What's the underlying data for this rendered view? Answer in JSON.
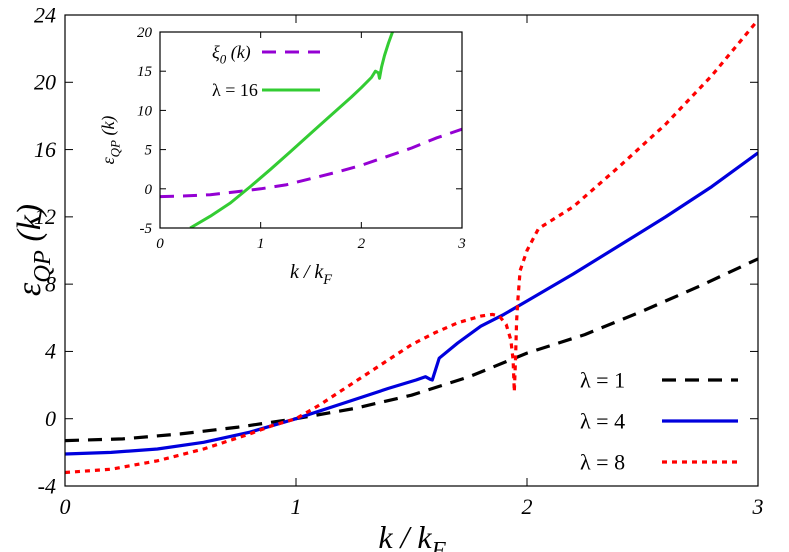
{
  "chart_data": [
    {
      "type": "line",
      "xlabel": {
        "main": "k / k",
        "sub": "F"
      },
      "ylabel": {
        "main": "ε",
        "sub": "QP",
        "tail": " (k)"
      },
      "xlim": [
        0,
        3
      ],
      "ylim": [
        -4,
        24
      ],
      "xticks": [
        "0",
        "1",
        "2",
        "3"
      ],
      "yticks": [
        "-4",
        "0",
        "4",
        "8",
        "12",
        "16",
        "20",
        "24"
      ],
      "legend_position": "bottom-right",
      "grid": false,
      "series": [
        {
          "name": "λ = 1",
          "color": "#000000",
          "dash": "long-dash",
          "x": [
            0,
            0.25,
            0.5,
            0.75,
            1.0,
            1.25,
            1.5,
            1.75,
            2.0,
            2.25,
            2.5,
            2.75,
            3.0
          ],
          "y": [
            -1.3,
            -1.2,
            -0.9,
            -0.5,
            0.0,
            0.6,
            1.4,
            2.5,
            3.9,
            5.0,
            6.4,
            7.9,
            9.5
          ]
        },
        {
          "name": "λ = 4",
          "color": "#0000dd",
          "dash": "solid",
          "x": [
            0,
            0.2,
            0.4,
            0.6,
            0.8,
            1.0,
            1.2,
            1.4,
            1.52,
            1.56,
            1.58,
            1.59,
            1.62,
            1.7,
            1.8,
            1.9,
            2.0,
            2.2,
            2.4,
            2.6,
            2.8,
            3.0
          ],
          "y": [
            -2.1,
            -2.0,
            -1.8,
            -1.4,
            -0.8,
            0.0,
            0.9,
            1.8,
            2.3,
            2.5,
            2.35,
            2.3,
            3.6,
            4.5,
            5.5,
            6.2,
            7.0,
            8.6,
            10.3,
            12.0,
            13.8,
            15.8
          ]
        },
        {
          "name": "λ = 8",
          "color": "#ff0000",
          "dash": "short-dash",
          "x": [
            0,
            0.2,
            0.4,
            0.6,
            0.8,
            0.9,
            1.0,
            1.1,
            1.2,
            1.3,
            1.4,
            1.5,
            1.6,
            1.7,
            1.8,
            1.85,
            1.88,
            1.91,
            1.93,
            1.94,
            1.945,
            1.95,
            1.955,
            1.96,
            1.97,
            2.0,
            2.05,
            2.2,
            2.4,
            2.6,
            2.8,
            3.0
          ],
          "y": [
            -3.2,
            -3.0,
            -2.5,
            -1.8,
            -0.9,
            -0.4,
            0.0,
            0.8,
            1.7,
            2.6,
            3.5,
            4.4,
            5.1,
            5.7,
            6.1,
            6.2,
            6.1,
            5.6,
            4.7,
            3.5,
            1.6,
            3.5,
            5.8,
            7.0,
            8.8,
            10.0,
            11.3,
            12.6,
            15.0,
            17.5,
            20.4,
            23.7
          ]
        }
      ]
    },
    {
      "type": "line",
      "inset": true,
      "xlabel": {
        "main": "k / k",
        "sub": "F"
      },
      "ylabel": {
        "main": "ε",
        "sub": "QP",
        "tail": " (k)"
      },
      "xlim": [
        0,
        3
      ],
      "ylim": [
        -5,
        20
      ],
      "xticks": [
        "0",
        "1",
        "2",
        "3"
      ],
      "yticks": [
        "-5",
        "0",
        "5",
        "10",
        "15",
        "20"
      ],
      "legend_position": "top-left",
      "grid": false,
      "series": [
        {
          "name": "ξ",
          "name_sub": "0",
          "name_tail": " (k)",
          "color": "#9400d3",
          "dash": "long-dash",
          "x": [
            0,
            0.25,
            0.5,
            0.75,
            1.0,
            1.25,
            1.5,
            1.75,
            2.0,
            2.25,
            2.5,
            2.75,
            3.0
          ],
          "y": [
            -1.0,
            -0.9,
            -0.75,
            -0.4,
            0.0,
            0.5,
            1.3,
            2.1,
            3.0,
            4.1,
            5.2,
            6.5,
            7.6
          ]
        },
        {
          "name": "λ = 16",
          "color": "#33cc33",
          "dash": "solid",
          "x": [
            0.3,
            0.5,
            0.7,
            0.9,
            1.1,
            1.3,
            1.5,
            1.7,
            1.9,
            2.0,
            2.1,
            2.14,
            2.17,
            2.18,
            2.2,
            2.23,
            2.27,
            2.31
          ],
          "y": [
            -5.0,
            -3.5,
            -1.8,
            0.3,
            2.5,
            4.8,
            7.1,
            9.4,
            11.7,
            12.9,
            14.2,
            15.0,
            14.8,
            14.1,
            15.5,
            17.0,
            18.6,
            20.0
          ]
        }
      ]
    }
  ]
}
